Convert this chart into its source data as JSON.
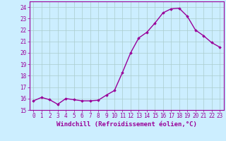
{
  "x": [
    0,
    1,
    2,
    3,
    4,
    5,
    6,
    7,
    8,
    9,
    10,
    11,
    12,
    13,
    14,
    15,
    16,
    17,
    18,
    19,
    20,
    21,
    22,
    23
  ],
  "y": [
    15.8,
    16.1,
    15.9,
    15.5,
    16.0,
    15.9,
    15.8,
    15.8,
    15.85,
    16.3,
    16.7,
    18.3,
    20.0,
    21.3,
    21.8,
    22.6,
    23.5,
    23.85,
    23.9,
    23.2,
    22.0,
    21.5,
    20.9,
    20.5
  ],
  "line_color": "#990099",
  "marker": "D",
  "marker_size": 1.8,
  "linewidth": 1.0,
  "xlabel": "Windchill (Refroidissement éolien,°C)",
  "xlabel_fontsize": 6.5,
  "ylim": [
    15,
    24.5
  ],
  "yticks": [
    15,
    16,
    17,
    18,
    19,
    20,
    21,
    22,
    23,
    24
  ],
  "xticks": [
    0,
    1,
    2,
    3,
    4,
    5,
    6,
    7,
    8,
    9,
    10,
    11,
    12,
    13,
    14,
    15,
    16,
    17,
    18,
    19,
    20,
    21,
    22,
    23
  ],
  "tick_fontsize": 5.5,
  "bg_color": "#cceeff",
  "grid_color": "#aacccc",
  "axes_color": "#990099",
  "spine_color": "#990099"
}
